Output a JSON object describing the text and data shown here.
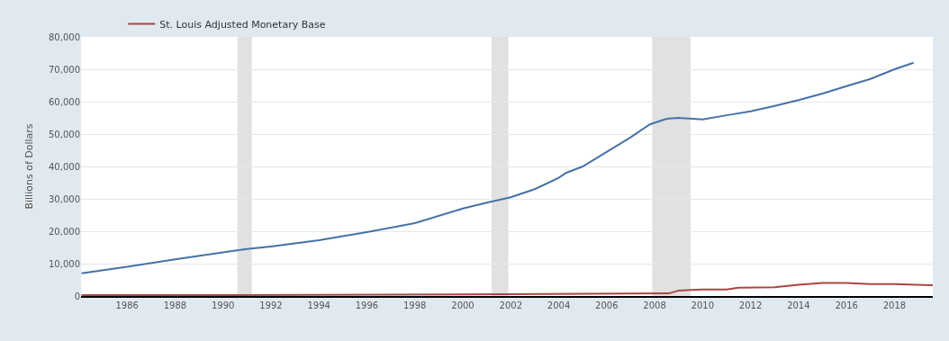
{
  "chart_data": {
    "type": "line",
    "ylabel": "Billions of Dollars",
    "xlim": [
      1984.08,
      2019.6
    ],
    "xticks": [
      1986,
      1988,
      1990,
      1992,
      1994,
      1996,
      1998,
      2000,
      2002,
      2004,
      2006,
      2008,
      2010,
      2012,
      2014,
      2016,
      2018
    ],
    "ylim": [
      0,
      80000
    ],
    "yticks": [
      0,
      {
        "value": 10000,
        "label": "10,000"
      },
      {
        "value": 20000,
        "label": "20,000"
      },
      {
        "value": 30000,
        "label": "30,000"
      },
      {
        "value": 40000,
        "label": "40,000"
      },
      {
        "value": 50000,
        "label": "50,000"
      },
      {
        "value": 60000,
        "label": "60,000"
      },
      {
        "value": 70000,
        "label": "70,000"
      },
      {
        "value": 80000,
        "label": "80,000"
      }
    ],
    "grid": "y",
    "legend": "top left",
    "bands": [
      {
        "axis": "x",
        "from": 1990.6,
        "to": 1991.2,
        "color": "#e1e1e1"
      },
      {
        "axis": "x",
        "from": 2001.2,
        "to": 2001.9,
        "color": "#e1e1e1"
      },
      {
        "axis": "x",
        "from": 2007.9,
        "to": 2009.5,
        "color": "#e1e1e1"
      }
    ],
    "series": [
      {
        "color": "#4572a7",
        "x": [
          1984.1,
          1986,
          1988,
          1990,
          1991,
          1992,
          1994,
          1996,
          1998,
          2000,
          2001,
          2002,
          2003,
          2004,
          2004.3,
          2005,
          2006,
          2007,
          2007.8,
          2008.5,
          2009,
          2010,
          2011,
          2012,
          2013,
          2014,
          2015,
          2016,
          2017,
          2018,
          2018.8
        ],
        "values": [
          7000,
          9000,
          11300,
          13500,
          14500,
          15300,
          17200,
          19700,
          22500,
          27000,
          28800,
          30500,
          33000,
          36500,
          38000,
          40000,
          44500,
          49000,
          53000,
          54700,
          55000,
          54500,
          55800,
          57000,
          58700,
          60500,
          62500,
          64800,
          67000,
          70000,
          72000
        ]
      },
      {
        "name": "St. Louis Adjusted Monetary Base",
        "color": "#aa4643",
        "x": [
          1984.1,
          1990,
          2000,
          2008.6,
          2009,
          2010,
          2011,
          2011.5,
          2013,
          2014,
          2015,
          2016,
          2017,
          2018,
          2019.6
        ],
        "values": [
          300,
          300,
          500,
          800,
          1700,
          2000,
          2000,
          2600,
          2700,
          3500,
          4000,
          4000,
          3700,
          3700,
          3300
        ]
      }
    ]
  }
}
